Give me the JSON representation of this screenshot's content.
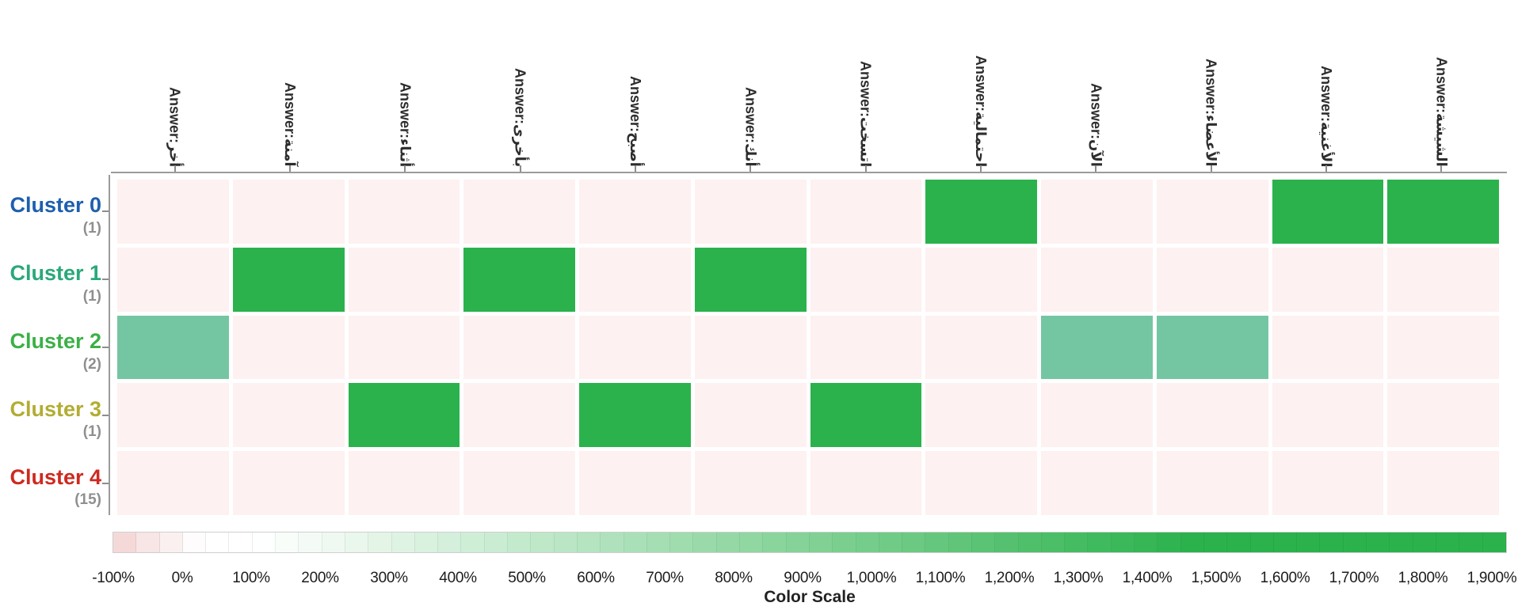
{
  "header": {
    "columns": [
      "Answer:أخر",
      "Answer:آمنة",
      "Answer:أثناء",
      "Answer:بأخرى",
      "Answer:أصبح",
      "Answer:أنك",
      "Answer:اتسخت",
      "Answer:احتمالية",
      "Answer:الآن",
      "Answer:الأعضاء",
      "Answer:الأغنية",
      "Answer:الشيشة"
    ]
  },
  "clusters": [
    {
      "label": "Cluster 0",
      "count": "(1)",
      "color": "#1d5fae"
    },
    {
      "label": "Cluster 1",
      "count": "(1)",
      "color": "#2aa87a"
    },
    {
      "label": "Cluster 2",
      "count": "(2)",
      "color": "#3bb046"
    },
    {
      "label": "Cluster 3",
      "count": "(1)",
      "color": "#b2ad33"
    },
    {
      "label": "Cluster 4",
      "count": "(15)",
      "color": "#cd2a21"
    }
  ],
  "chart_data": {
    "type": "heatmap",
    "rows": [
      "Cluster 0",
      "Cluster 1",
      "Cluster 2",
      "Cluster 3",
      "Cluster 4"
    ],
    "row_counts": [
      1,
      1,
      2,
      1,
      15
    ],
    "columns": [
      "Answer:أخر",
      "Answer:آمنة",
      "Answer:أثناء",
      "Answer:بأخرى",
      "Answer:أصبح",
      "Answer:أنك",
      "Answer:اتسخت",
      "Answer:احتمالية",
      "Answer:الآن",
      "Answer:الأعضاء",
      "Answer:الأغنية",
      "Answer:الشيشة"
    ],
    "values_pct": [
      [
        -50,
        -50,
        -50,
        -50,
        -50,
        -50,
        -50,
        1900,
        -50,
        -50,
        1900,
        1900
      ],
      [
        -50,
        1900,
        -50,
        1900,
        -50,
        1900,
        -50,
        -50,
        -50,
        -50,
        -50,
        -50
      ],
      [
        800,
        -50,
        -50,
        -50,
        -50,
        -50,
        -50,
        -50,
        800,
        800,
        -50,
        -50
      ],
      [
        -50,
        -50,
        1900,
        -50,
        1900,
        -50,
        1900,
        -50,
        -50,
        -50,
        -50,
        -50
      ],
      [
        -50,
        -50,
        -50,
        -50,
        -50,
        -50,
        -50,
        -50,
        -50,
        -50,
        -50,
        -50
      ]
    ],
    "legend_title": "Color Scale",
    "colorscale": {
      "min_pct": -100,
      "max_pct": 1900,
      "ticks": [
        "-100%",
        "0%",
        "100%",
        "200%",
        "300%",
        "400%",
        "500%",
        "600%",
        "700%",
        "800%",
        "900%",
        "1,000%",
        "1,100%",
        "1,200%",
        "1,300%",
        "1,400%",
        "1,500%",
        "1,600%",
        "1,700%",
        "1,800%",
        "1,900%"
      ],
      "segments": 60,
      "negative_color": "#f5d9d9",
      "zero_color": "#ffffff",
      "positive_color": "#2bb24c"
    },
    "layout": {
      "grid_on": false,
      "legend_position": "bottom"
    }
  },
  "colors": {
    "cell_low": "#fdf1f1",
    "cell_mid": "#74c6a2",
    "cell_high": "#2bb24c",
    "axis": "#9b9b9b",
    "count_text": "#8f8f8f",
    "header_text": "#2d2d2d"
  }
}
